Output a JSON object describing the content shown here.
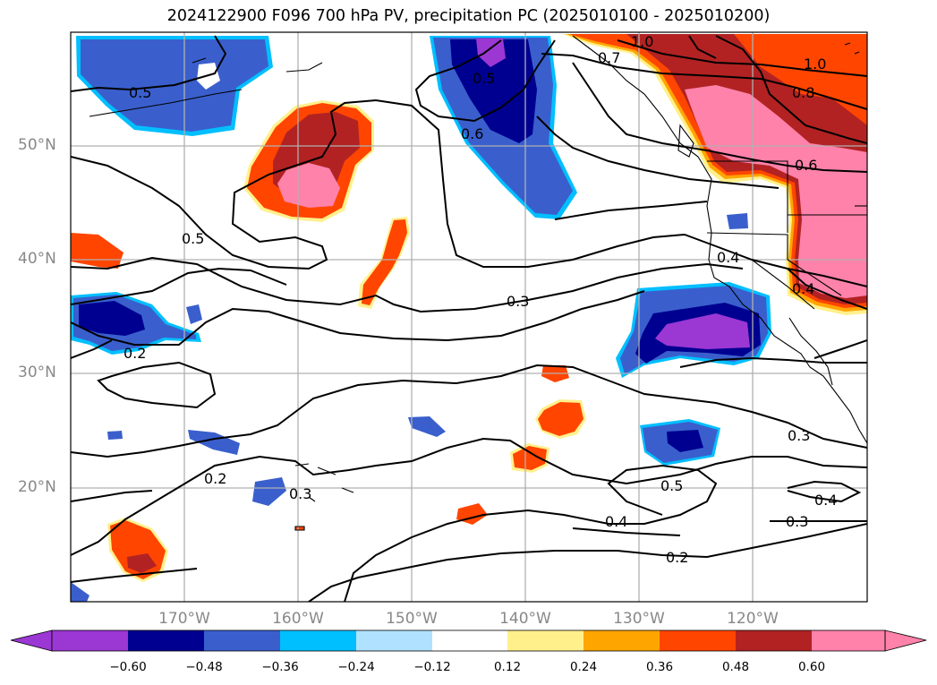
{
  "title": "2024122900 F096 700 hPa PV, precipitation PC (2025010100 - 2025010200)",
  "lat_labels": [
    "50°N",
    "40°N",
    "30°N",
    "20°N"
  ],
  "lon_labels": [
    "170°W",
    "160°W",
    "150°W",
    "140°W",
    "130°W",
    "120°W"
  ],
  "colorbar": {
    "ticks": [
      "−0.60",
      "−0.48",
      "−0.36",
      "−0.24",
      "−0.12",
      "0.12",
      "0.24",
      "0.36",
      "0.48",
      "0.60"
    ],
    "colors": [
      "#9b37d3",
      "#000090",
      "#3a5fcd",
      "#00bfff",
      "#b0e2ff",
      "#ffffff",
      "#fff08c",
      "#ffa500",
      "#ff4500",
      "#b22222",
      "#ff82ab"
    ]
  },
  "contour_labels": [
    "0.5",
    "0.5",
    "0.6",
    "1.0",
    "1.0",
    "0.7",
    "0.8",
    "0.6",
    "0.5",
    "0.4",
    "0.4",
    "0.3",
    "0.2",
    "0.3",
    "0.3",
    "0.5",
    "0.4",
    "0.4",
    "0.3",
    "0.2",
    "0.2"
  ]
}
